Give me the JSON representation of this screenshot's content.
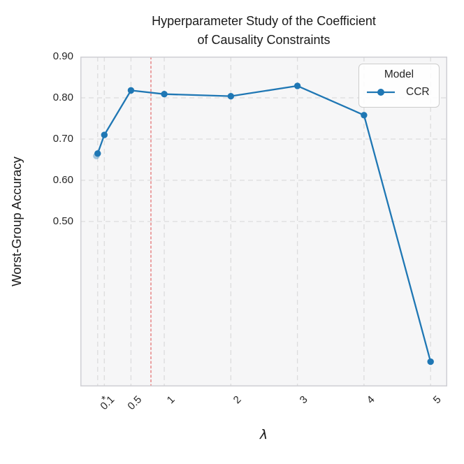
{
  "figure": {
    "title_line1": "Hyperparameter Study of the Coefficient",
    "title_line2": "of Causality Constraints",
    "xlabel": "λ",
    "ylabel": "Worst-Group Accuracy"
  },
  "legend": {
    "title": "Model",
    "entries": [
      {
        "label": "CCR",
        "color": "#1f77b4"
      }
    ]
  },
  "colors": {
    "series_blue": "#1f77b4",
    "reference_red": "#e57373",
    "gridline": "#dcdcdd",
    "plot_background": "#f6f6f7",
    "spine": "#cfcfd4",
    "text": "#262626"
  },
  "chart_data": {
    "type": "line",
    "title": "Hyperparameter Study of the Coefficient of Causality Constraints",
    "xlabel": "λ",
    "ylabel": "Worst-Group Accuracy",
    "grid": true,
    "legend_position": "upper-right",
    "xlim": [
      -0.26,
      5.25
    ],
    "ylim": [
      0.1,
      0.9
    ],
    "x_ticks": [
      {
        "value": 0,
        "label": "*"
      },
      {
        "value": 0.1,
        "label": "0.1"
      },
      {
        "value": 0.5,
        "label": "0.5"
      },
      {
        "value": 1,
        "label": "1"
      },
      {
        "value": 2,
        "label": "2"
      },
      {
        "value": 3,
        "label": "3"
      },
      {
        "value": 4,
        "label": "4"
      },
      {
        "value": 5,
        "label": "5"
      }
    ],
    "y_ticks": [
      {
        "value": 0.5,
        "label": "0.50"
      },
      {
        "value": 0.6,
        "label": "0.60"
      },
      {
        "value": 0.7,
        "label": "0.70"
      },
      {
        "value": 0.8,
        "label": "0.80"
      },
      {
        "value": 0.9,
        "label": "0.90"
      }
    ],
    "series": [
      {
        "name": "CCR",
        "color": "#1f77b4",
        "x": [
          0,
          0.1,
          0.5,
          1,
          2,
          3,
          4,
          5
        ],
        "y": [
          0.665,
          0.71,
          0.818,
          0.809,
          0.804,
          0.829,
          0.758,
          0.16
        ]
      }
    ],
    "shadow_point": {
      "x": -0.02,
      "y": 0.659,
      "opacity": 0.38
    },
    "reference_line": {
      "axis": "x",
      "value": 0.8,
      "color": "#e57373",
      "style": "dashed"
    }
  }
}
